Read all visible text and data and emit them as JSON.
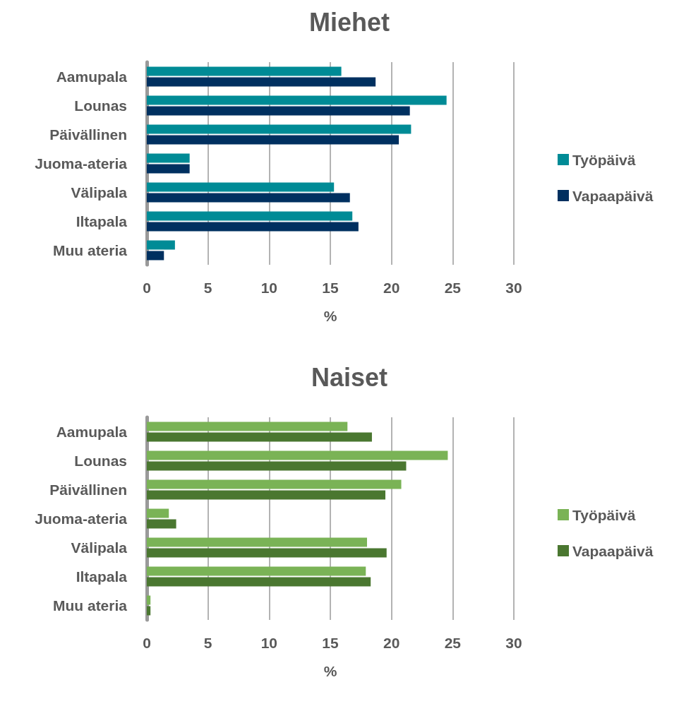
{
  "chart_data": [
    {
      "type": "bar",
      "orientation": "horizontal",
      "title": "Miehet",
      "xlabel": "%",
      "categories": [
        "Aamupala",
        "Lounas",
        "Päivällinen",
        "Juoma-ateria",
        "Välipala",
        "Iltapala",
        "Muu ateria"
      ],
      "series": [
        {
          "name": "Työpäivä",
          "color": "#008b96",
          "values": [
            15.9,
            24.5,
            21.6,
            3.5,
            15.3,
            16.8,
            2.3
          ]
        },
        {
          "name": "Vapaapäivä",
          "color": "#003060",
          "values": [
            18.7,
            21.5,
            20.6,
            3.5,
            16.6,
            17.3,
            1.4
          ]
        }
      ],
      "xlim": [
        0,
        30
      ],
      "xticks": [
        0,
        5,
        10,
        15,
        20,
        25,
        30
      ],
      "grid": "x",
      "legend": "right"
    },
    {
      "type": "bar",
      "orientation": "horizontal",
      "title": "Naiset",
      "xlabel": "%",
      "categories": [
        "Aamupala",
        "Lounas",
        "Päivällinen",
        "Juoma-ateria",
        "Välipala",
        "Iltapala",
        "Muu ateria"
      ],
      "series": [
        {
          "name": "Työpäivä",
          "color": "#7ab356",
          "values": [
            16.4,
            24.6,
            20.8,
            1.8,
            18.0,
            17.9,
            0.3
          ]
        },
        {
          "name": "Vapaapäivä",
          "color": "#4a7730",
          "values": [
            18.4,
            21.2,
            19.5,
            2.4,
            19.6,
            18.3,
            0.3
          ]
        }
      ],
      "xlim": [
        0,
        30
      ],
      "xticks": [
        0,
        5,
        10,
        15,
        20,
        25,
        30
      ],
      "grid": "x",
      "legend": "right"
    }
  ]
}
